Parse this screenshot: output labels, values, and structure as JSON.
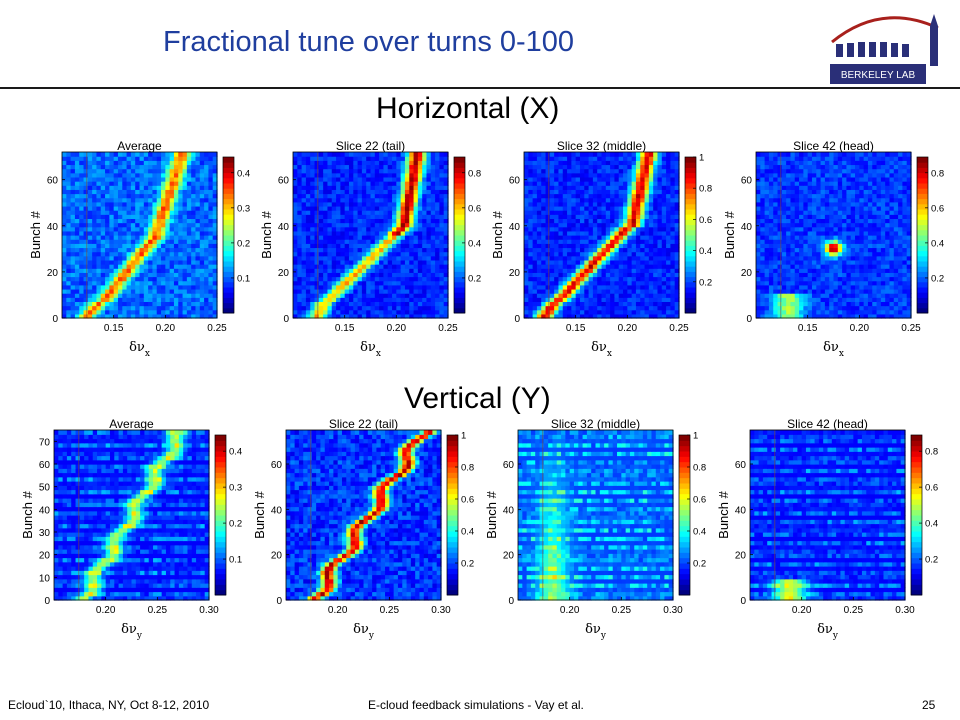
{
  "slide": {
    "title": "Fractional tune over turns 0-100",
    "footer_left": "Ecloud`10, Ithaca, NY, Oct 8-12, 2010",
    "footer_center": "E-cloud feedback simulations - Vay et al.",
    "page_number": "25",
    "logo_text": "BERKELEY LAB"
  },
  "sections": {
    "horizontal": "Horizontal (X)",
    "vertical": "Vertical (Y)"
  },
  "chart_data": [
    {
      "type": "heatmap",
      "title": "Average",
      "ylabel": "Bunch #",
      "xlabel_symbol": "δν",
      "xlabel_sub": "x",
      "x_ticks": [
        "0.15",
        "0.20",
        "0.25"
      ],
      "y_ticks": [
        "0",
        "20",
        "40",
        "60"
      ],
      "colorbar_ticks": [
        "0.1",
        "0.2",
        "0.3",
        "0.4"
      ],
      "xlim": [
        0.1,
        0.25
      ],
      "ylim": [
        0,
        72
      ]
    },
    {
      "type": "heatmap",
      "title": "Slice 22 (tail)",
      "ylabel": "Bunch #",
      "xlabel_symbol": "δν",
      "xlabel_sub": "x",
      "x_ticks": [
        "0.15",
        "0.20",
        "0.25"
      ],
      "y_ticks": [
        "0",
        "20",
        "40",
        "60"
      ],
      "colorbar_ticks": [
        "0.2",
        "0.4",
        "0.6",
        "0.8"
      ],
      "xlim": [
        0.1,
        0.25
      ],
      "ylim": [
        0,
        72
      ]
    },
    {
      "type": "heatmap",
      "title": "Slice 32 (middle)",
      "ylabel": "Bunch #",
      "xlabel_symbol": "δν",
      "xlabel_sub": "x",
      "x_ticks": [
        "0.15",
        "0.20",
        "0.25"
      ],
      "y_ticks": [
        "0",
        "20",
        "40",
        "60"
      ],
      "colorbar_ticks": [
        "0.2",
        "0.4",
        "0.6",
        "0.8",
        "1"
      ],
      "xlim": [
        0.1,
        0.25
      ],
      "ylim": [
        0,
        72
      ]
    },
    {
      "type": "heatmap",
      "title": "Slice 42 (head)",
      "ylabel": "Bunch #",
      "xlabel_symbol": "δν",
      "xlabel_sub": "x",
      "x_ticks": [
        "0.15",
        "0.20",
        "0.25"
      ],
      "y_ticks": [
        "0",
        "20",
        "40",
        "60"
      ],
      "colorbar_ticks": [
        "0.2",
        "0.4",
        "0.6",
        "0.8"
      ],
      "xlim": [
        0.1,
        0.25
      ],
      "ylim": [
        0,
        72
      ]
    },
    {
      "type": "heatmap",
      "title": "Average",
      "ylabel": "Bunch #",
      "xlabel_symbol": "δν",
      "xlabel_sub": "y",
      "x_ticks": [
        "0.20",
        "0.25",
        "0.30"
      ],
      "y_ticks": [
        "0",
        "10",
        "20",
        "30",
        "40",
        "50",
        "60",
        "70"
      ],
      "colorbar_ticks": [
        "0.1",
        "0.2",
        "0.3",
        "0.4"
      ],
      "xlim": [
        0.15,
        0.3
      ],
      "ylim": [
        0,
        75
      ]
    },
    {
      "type": "heatmap",
      "title": "Slice 22 (tail)",
      "ylabel": "Bunch #",
      "xlabel_symbol": "δν",
      "xlabel_sub": "y",
      "x_ticks": [
        "0.20",
        "0.25",
        "0.30"
      ],
      "y_ticks": [
        "0",
        "20",
        "40",
        "60"
      ],
      "colorbar_ticks": [
        "0.2",
        "0.4",
        "0.6",
        "0.8",
        "1"
      ],
      "xlim": [
        0.15,
        0.3
      ],
      "ylim": [
        0,
        75
      ]
    },
    {
      "type": "heatmap",
      "title": "Slice 32 (middle)",
      "ylabel": "Bunch #",
      "xlabel_symbol": "δν",
      "xlabel_sub": "y",
      "x_ticks": [
        "0.20",
        "0.25",
        "0.30"
      ],
      "y_ticks": [
        "0",
        "20",
        "40",
        "60"
      ],
      "colorbar_ticks": [
        "0.2",
        "0.4",
        "0.6",
        "0.8",
        "1"
      ],
      "xlim": [
        0.15,
        0.3
      ],
      "ylim": [
        0,
        75
      ]
    },
    {
      "type": "heatmap",
      "title": "Slice 42 (head)",
      "ylabel": "Bunch #",
      "xlabel_symbol": "δν",
      "xlabel_sub": "y",
      "x_ticks": [
        "0.20",
        "0.25",
        "0.30"
      ],
      "y_ticks": [
        "0",
        "20",
        "40",
        "60"
      ],
      "colorbar_ticks": [
        "0.2",
        "0.4",
        "0.6",
        "0.8"
      ],
      "xlim": [
        0.15,
        0.3
      ],
      "ylim": [
        0,
        75
      ]
    }
  ]
}
